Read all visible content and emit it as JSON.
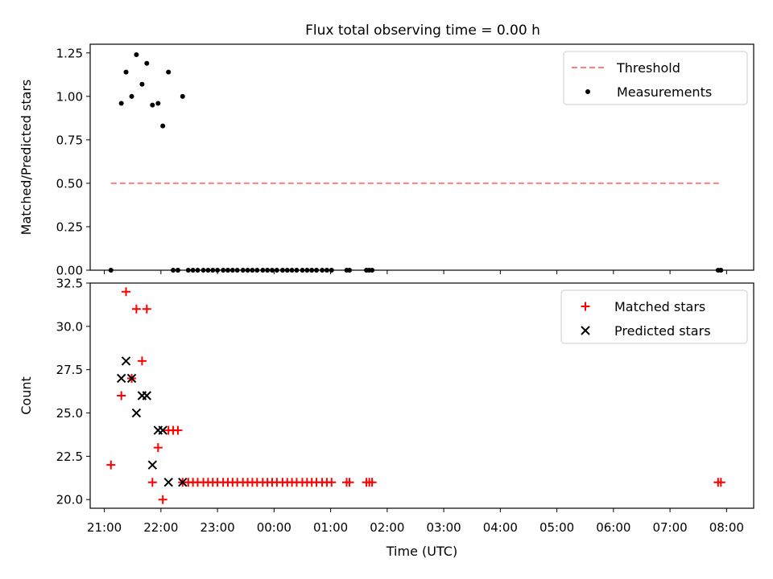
{
  "title": "Flux total observing time = 0.00 h",
  "chart_data": [
    {
      "type": "scatter",
      "ylabel": "Matched/Predicted stars",
      "xlabel": "",
      "ylim": [
        0.0,
        1.3
      ],
      "xlim": [
        "21:00",
        "08:00"
      ],
      "yticks": [
        0.0,
        0.25,
        0.5,
        0.75,
        1.0,
        1.25
      ],
      "ytick_labels": [
        "0.00",
        "0.25",
        "0.50",
        "0.75",
        "1.00",
        "1.25"
      ],
      "legend_position": "top-right",
      "series": [
        {
          "name": "Threshold",
          "kind": "line",
          "style": "dashed",
          "color": "#ff7f7f",
          "x": [
            "21:07",
            "07:55"
          ],
          "y": [
            0.5,
            0.5
          ]
        },
        {
          "name": "Measurements",
          "kind": "points",
          "color": "#000000",
          "points": [
            [
              "21:07",
              0.0
            ],
            [
              "21:18",
              0.96
            ],
            [
              "21:23",
              1.14
            ],
            [
              "21:29",
              1.0
            ],
            [
              "21:34",
              1.24
            ],
            [
              "21:40",
              1.07
            ],
            [
              "21:45",
              1.19
            ],
            [
              "21:51",
              0.95
            ],
            [
              "21:57",
              0.96
            ],
            [
              "22:02",
              0.83
            ],
            [
              "22:08",
              1.14
            ],
            [
              "22:13",
              0.0
            ],
            [
              "22:18",
              0.0
            ],
            [
              "22:23",
              1.0
            ],
            [
              "22:29",
              0.0
            ],
            [
              "22:34",
              0.0
            ],
            [
              "22:39",
              0.0
            ],
            [
              "22:45",
              0.0
            ],
            [
              "22:50",
              0.0
            ],
            [
              "22:55",
              0.0
            ],
            [
              "23:00",
              0.0
            ],
            [
              "23:06",
              0.0
            ],
            [
              "23:11",
              0.0
            ],
            [
              "23:16",
              0.0
            ],
            [
              "23:21",
              0.0
            ],
            [
              "23:27",
              0.0
            ],
            [
              "23:32",
              0.0
            ],
            [
              "23:37",
              0.0
            ],
            [
              "23:42",
              0.0
            ],
            [
              "23:48",
              0.0
            ],
            [
              "23:53",
              0.0
            ],
            [
              "23:58",
              0.0
            ],
            [
              "00:03",
              0.0
            ],
            [
              "00:09",
              0.0
            ],
            [
              "00:14",
              0.0
            ],
            [
              "00:19",
              0.0
            ],
            [
              "00:24",
              0.0
            ],
            [
              "00:30",
              0.0
            ],
            [
              "00:35",
              0.0
            ],
            [
              "00:40",
              0.0
            ],
            [
              "00:45",
              0.0
            ],
            [
              "00:51",
              0.0
            ],
            [
              "00:56",
              0.0
            ],
            [
              "01:01",
              0.0
            ],
            [
              "01:17",
              0.0
            ],
            [
              "01:20",
              0.0
            ],
            [
              "01:38",
              0.0
            ],
            [
              "01:41",
              0.0
            ],
            [
              "01:44",
              0.0
            ],
            [
              "07:51",
              0.0
            ],
            [
              "07:54",
              0.0
            ]
          ]
        }
      ]
    },
    {
      "type": "scatter",
      "ylabel": "Count",
      "xlabel": "Time (UTC)",
      "ylim": [
        19.5,
        32.5
      ],
      "xlim": [
        "21:00",
        "08:00"
      ],
      "yticks": [
        20.0,
        22.5,
        25.0,
        27.5,
        30.0,
        32.5
      ],
      "ytick_labels": [
        "20.0",
        "22.5",
        "25.0",
        "27.5",
        "30.0",
        "32.5"
      ],
      "xtick_labels": [
        "21:00",
        "22:00",
        "23:00",
        "00:00",
        "01:00",
        "02:00",
        "03:00",
        "04:00",
        "05:00",
        "06:00",
        "07:00",
        "08:00"
      ],
      "legend_position": "top-right",
      "series": [
        {
          "name": "Matched stars",
          "marker": "+",
          "color": "#ff0000",
          "points": [
            [
              "21:07",
              22
            ],
            [
              "21:18",
              26
            ],
            [
              "21:23",
              32
            ],
            [
              "21:29",
              27
            ],
            [
              "21:34",
              31
            ],
            [
              "21:40",
              28
            ],
            [
              "21:45",
              31
            ],
            [
              "21:51",
              21
            ],
            [
              "21:57",
              23
            ],
            [
              "22:02",
              20
            ],
            [
              "22:08",
              24
            ],
            [
              "22:13",
              24
            ],
            [
              "22:18",
              24
            ],
            [
              "22:23",
              21
            ],
            [
              "22:29",
              21
            ],
            [
              "22:34",
              21
            ],
            [
              "22:39",
              21
            ],
            [
              "22:45",
              21
            ],
            [
              "22:50",
              21
            ],
            [
              "22:55",
              21
            ],
            [
              "23:00",
              21
            ],
            [
              "23:06",
              21
            ],
            [
              "23:11",
              21
            ],
            [
              "23:16",
              21
            ],
            [
              "23:21",
              21
            ],
            [
              "23:27",
              21
            ],
            [
              "23:32",
              21
            ],
            [
              "23:37",
              21
            ],
            [
              "23:42",
              21
            ],
            [
              "23:48",
              21
            ],
            [
              "23:53",
              21
            ],
            [
              "23:58",
              21
            ],
            [
              "00:03",
              21
            ],
            [
              "00:09",
              21
            ],
            [
              "00:14",
              21
            ],
            [
              "00:19",
              21
            ],
            [
              "00:24",
              21
            ],
            [
              "00:30",
              21
            ],
            [
              "00:35",
              21
            ],
            [
              "00:40",
              21
            ],
            [
              "00:45",
              21
            ],
            [
              "00:51",
              21
            ],
            [
              "00:56",
              21
            ],
            [
              "01:01",
              21
            ],
            [
              "01:17",
              21
            ],
            [
              "01:20",
              21
            ],
            [
              "01:38",
              21
            ],
            [
              "01:41",
              21
            ],
            [
              "01:44",
              21
            ],
            [
              "07:51",
              21
            ],
            [
              "07:54",
              21
            ]
          ]
        },
        {
          "name": "Predicted stars",
          "marker": "x",
          "color": "#000000",
          "points": [
            [
              "21:18",
              27
            ],
            [
              "21:23",
              28
            ],
            [
              "21:29",
              27
            ],
            [
              "21:34",
              25
            ],
            [
              "21:40",
              26
            ],
            [
              "21:45",
              26
            ],
            [
              "21:51",
              22
            ],
            [
              "21:57",
              24
            ],
            [
              "22:02",
              24
            ],
            [
              "22:08",
              21
            ],
            [
              "22:23",
              21
            ]
          ]
        }
      ]
    }
  ]
}
